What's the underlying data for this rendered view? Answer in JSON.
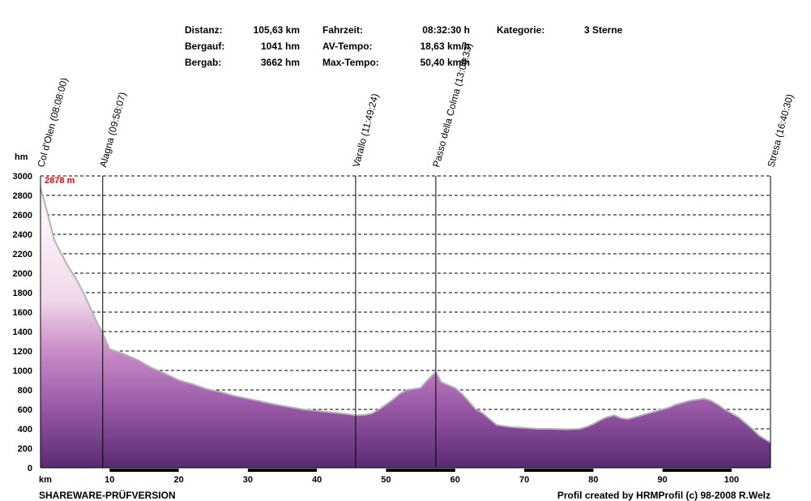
{
  "stats": {
    "distanz_label": "Distanz:",
    "distanz_value": "105,63 km",
    "bergauf_label": "Bergauf:",
    "bergauf_value": "1041 hm",
    "bergab_label": "Bergab:",
    "bergab_value": "3662 hm",
    "fahrzeit_label": "Fahrzeit:",
    "fahrzeit_value": "08:32:30 h",
    "avtempo_label": "AV-Tempo:",
    "avtempo_value": "18,63 km/h",
    "maxtempo_label": "Max-Tempo:",
    "maxtempo_value": "50,40 km/h",
    "kategorie_label": "Kategorie:",
    "kategorie_value": "3 Sterne"
  },
  "footer": {
    "left": "SHAREWARE-PRÜFVERSION",
    "right": "Profil created by HRMProfil (c) 98-2008 R.Welz"
  },
  "chart_data": {
    "type": "area",
    "xlabel": "km",
    "ylabel": "hm",
    "xlim": [
      0,
      105.63
    ],
    "ylim": [
      0,
      3000
    ],
    "xticks": [
      10,
      20,
      30,
      40,
      50,
      60,
      70,
      80,
      90,
      100
    ],
    "yticks": [
      0,
      200,
      400,
      600,
      800,
      1000,
      1200,
      1400,
      1600,
      1800,
      2000,
      2200,
      2400,
      2600,
      2800,
      3000
    ],
    "grid": "horizontal dashed",
    "max_label": "2878 m",
    "colors": {
      "fill_top": "#f7eef4",
      "fill_mid": "#c58bc7",
      "fill_bottom": "#5b2a72",
      "line": "#b3b3b3",
      "max_label": "#ff0000"
    },
    "waypoints": [
      {
        "label": "Col d'Olen (08:08:00)",
        "km": 0
      },
      {
        "label": "Alagna (09:58:07)",
        "km": 9
      },
      {
        "label": "Varallo (11:49:24)",
        "km": 45.6
      },
      {
        "label": "Passo della Colma (13:06:33)",
        "km": 57.2
      },
      {
        "label": "Stresa (16:40:30)",
        "km": 105.63
      }
    ],
    "x": [
      0,
      1,
      2,
      3,
      4,
      5,
      6,
      7,
      8,
      9,
      10,
      12,
      14,
      16,
      18,
      20,
      22,
      24,
      26,
      28,
      30,
      32,
      34,
      36,
      38,
      40,
      42,
      44,
      45.6,
      47,
      48,
      49,
      50,
      51,
      52,
      53,
      54,
      55,
      56,
      57.2,
      58,
      59,
      60,
      61,
      62,
      63,
      64,
      65,
      66,
      68,
      70,
      72,
      74,
      76,
      78,
      79,
      80,
      81,
      82,
      83,
      84,
      85,
      86,
      87,
      88,
      89,
      90,
      91,
      92,
      93,
      94,
      95,
      96,
      97,
      98,
      99,
      100,
      101,
      102,
      103,
      104,
      105.63
    ],
    "elevation": [
      2878,
      2620,
      2340,
      2200,
      2070,
      1960,
      1830,
      1680,
      1520,
      1380,
      1220,
      1170,
      1110,
      1030,
      970,
      900,
      860,
      810,
      780,
      740,
      710,
      680,
      650,
      625,
      600,
      585,
      570,
      555,
      540,
      545,
      560,
      600,
      650,
      700,
      760,
      800,
      810,
      820,
      900,
      985,
      880,
      850,
      820,
      760,
      680,
      600,
      560,
      500,
      440,
      420,
      410,
      400,
      400,
      395,
      400,
      420,
      450,
      490,
      520,
      540,
      510,
      500,
      520,
      540,
      560,
      580,
      600,
      620,
      650,
      670,
      690,
      700,
      710,
      690,
      650,
      600,
      560,
      520,
      460,
      400,
      330,
      260
    ]
  }
}
